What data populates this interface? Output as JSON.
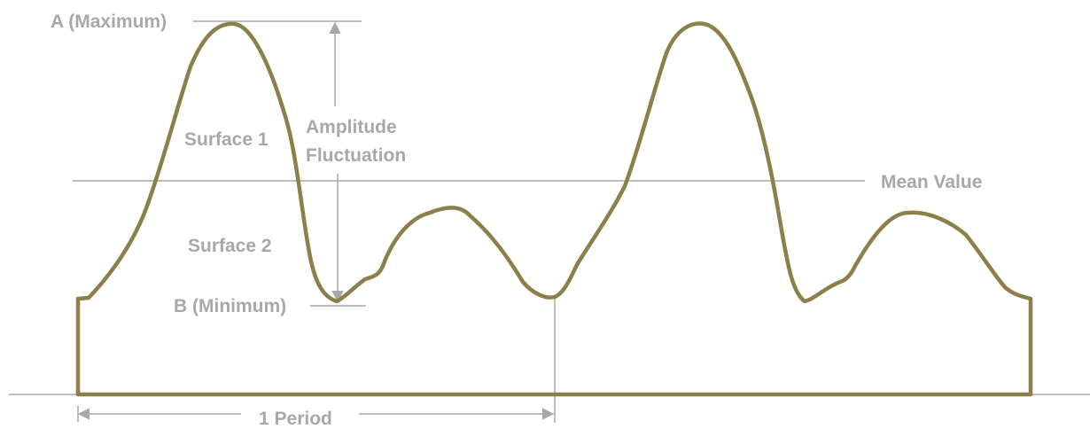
{
  "diagram": {
    "labels": {
      "maximum": "A (Maximum)",
      "minimum": "B (Minimum)",
      "surface_1": "Surface 1",
      "surface_2": "Surface 2",
      "amplitude_line1": "Amplitude",
      "amplitude_line2": "Fluctuation",
      "mean_value": "Mean Value",
      "period": "1 Period"
    },
    "colors": {
      "profile": "#8b7f4a",
      "annotation": "#a8a8a8",
      "background": "#ffffff"
    }
  }
}
